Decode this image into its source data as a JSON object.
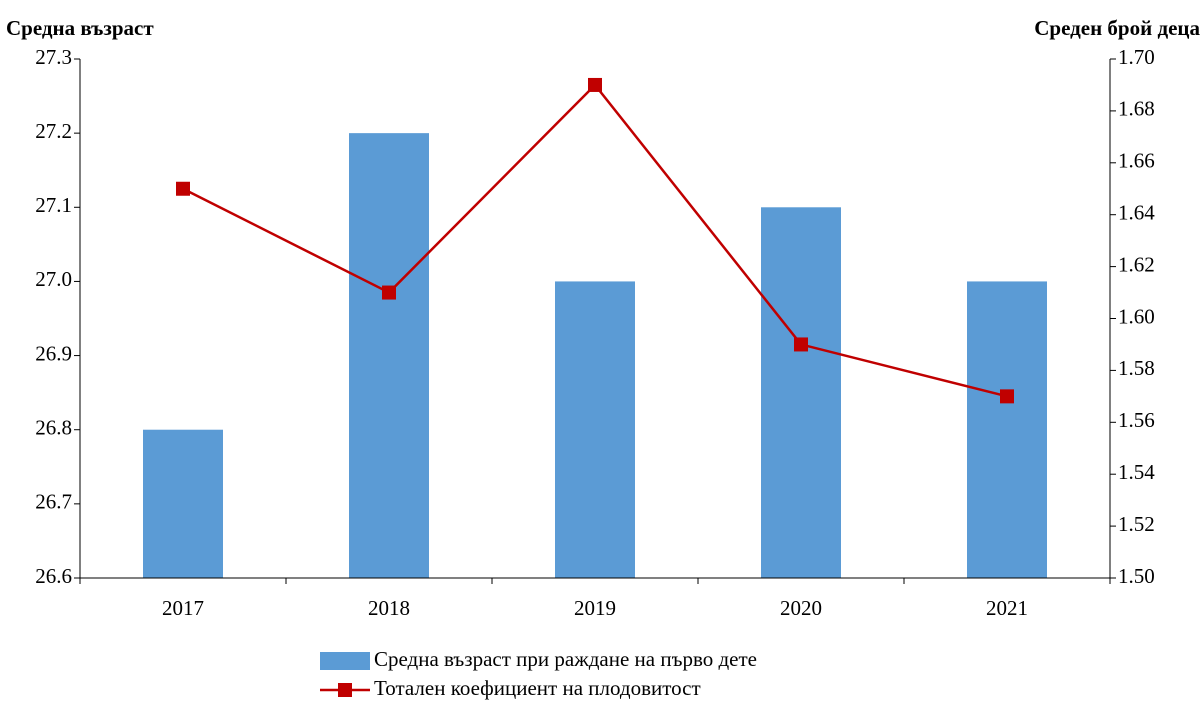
{
  "chart_data": {
    "type": "bar_line",
    "y_label": "Средна възраст",
    "y2_label": "Среден брой деца",
    "categories": [
      "2017",
      "2018",
      "2019",
      "2020",
      "2021"
    ],
    "series": [
      {
        "name": "Средна възраст при раждане на първо дете",
        "type": "bar",
        "color": "#5b9bd5",
        "values": [
          26.8,
          27.2,
          27.0,
          27.1,
          27.0
        ]
      },
      {
        "name": "Тотален коефициент на плодовитост",
        "type": "line",
        "axis": "y2",
        "color": "#c00000",
        "values": [
          1.65,
          1.61,
          1.69,
          1.59,
          1.57
        ]
      }
    ],
    "ylim": [
      26.6,
      27.3
    ],
    "yticks": [
      26.6,
      26.7,
      26.8,
      26.9,
      {
        "value": 27,
        "label": "27.0"
      },
      27.1,
      27.2,
      27.3
    ],
    "y2lim": [
      1.5,
      1.7
    ],
    "y2ticks": [
      {
        "value": 1.5,
        "label": "1.50"
      },
      1.52,
      1.54,
      1.56,
      1.58,
      {
        "value": 1.6,
        "label": "1.60"
      },
      1.62,
      1.64,
      1.66,
      1.68,
      {
        "value": 1.7,
        "label": "1.70"
      }
    ],
    "grid": false
  }
}
